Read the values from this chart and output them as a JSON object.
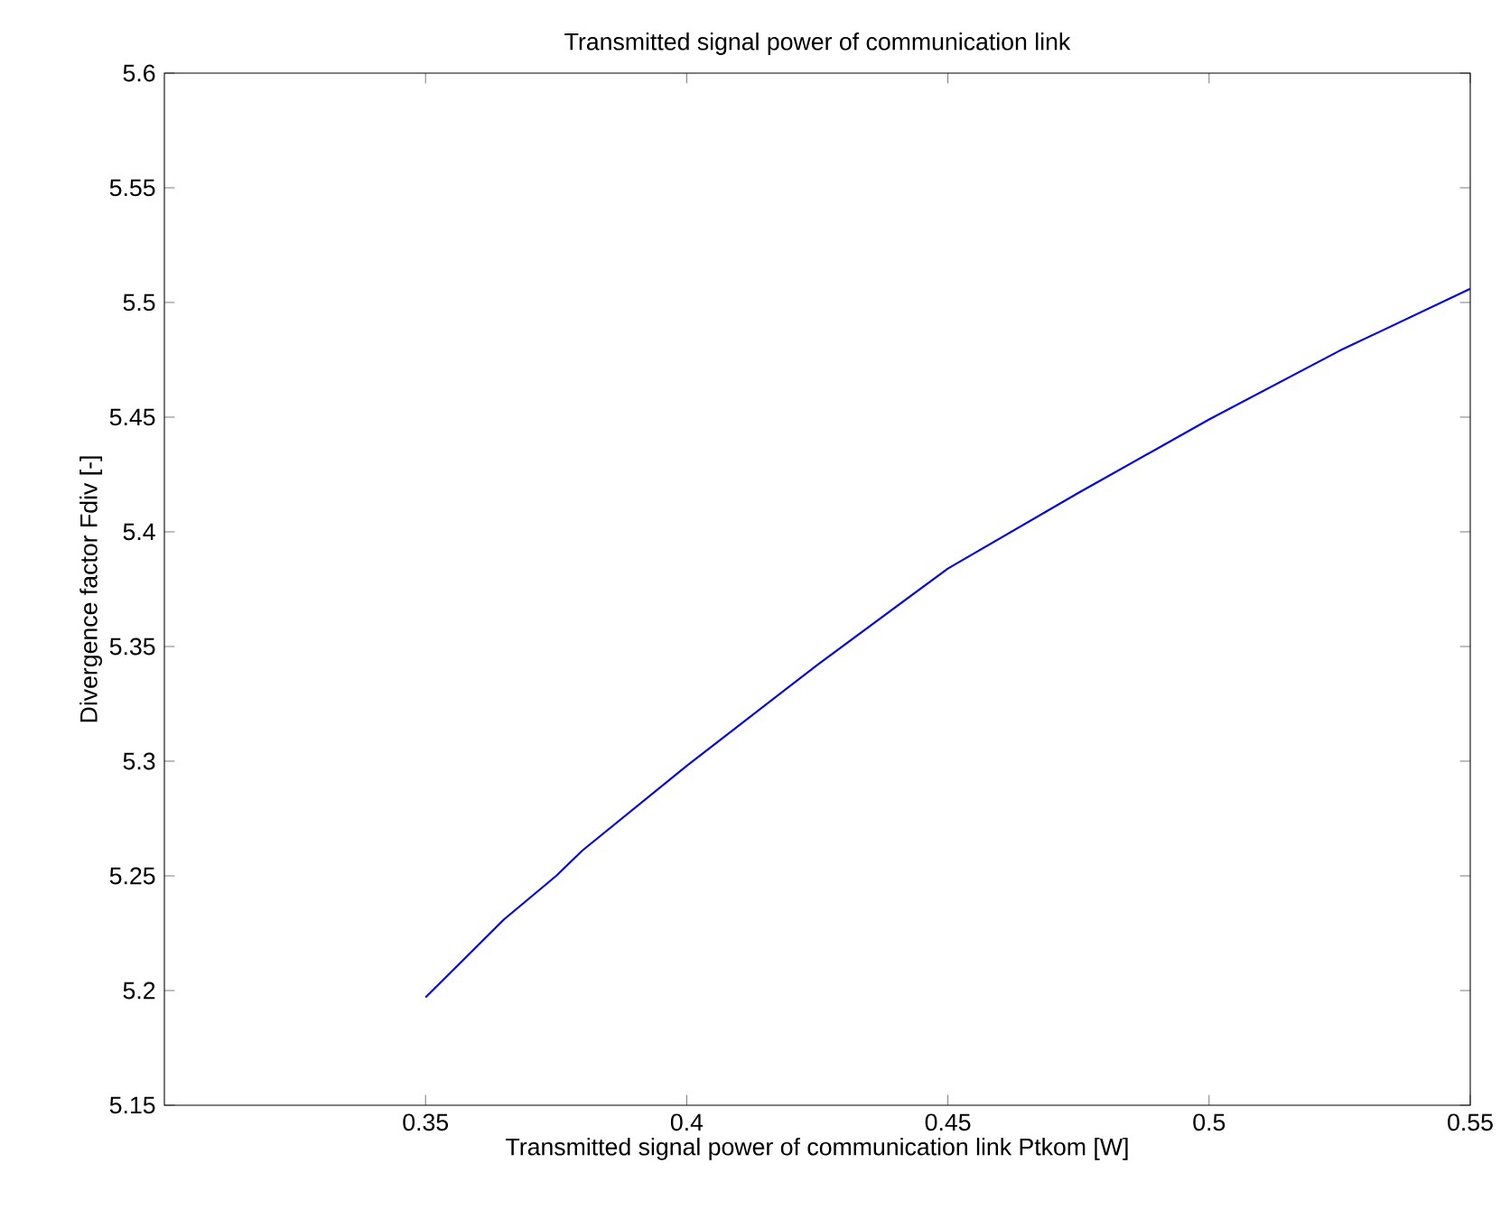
{
  "chart_data": {
    "type": "line",
    "title": "Transmitted signal power of communication link",
    "xlabel": "Transmitted signal power of communication link Ptkom [W]",
    "ylabel": "Divergence factor Fdiv [-]",
    "x": [
      0.35,
      0.365,
      0.375,
      0.38,
      0.4,
      0.425,
      0.45,
      0.475,
      0.5,
      0.525,
      0.55
    ],
    "series": [
      {
        "color": "#0000ff",
        "values": [
          5.197,
          5.231,
          5.25,
          5.261,
          5.298,
          5.342,
          5.384,
          5.417,
          5.449,
          5.479,
          5.506
        ]
      }
    ],
    "xlim": [
      0.3,
      0.55
    ],
    "ylim": [
      5.15,
      5.6
    ],
    "xticks": [
      0.35,
      0.4,
      0.45,
      0.5,
      0.55
    ],
    "yticks": [
      5.15,
      5.2,
      5.25,
      5.3,
      5.35,
      5.4,
      5.45,
      5.5,
      5.55,
      5.6
    ],
    "marker": "none",
    "line_style": "solid"
  }
}
